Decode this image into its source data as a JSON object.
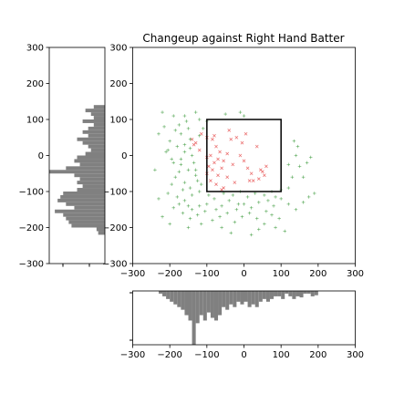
{
  "chart_data": [
    {
      "type": "scatter",
      "role": "main",
      "title": "Changeup against Right Hand Batter",
      "xlim": [
        -300,
        300
      ],
      "ylim": [
        -300,
        300
      ],
      "xticks": [
        "−300",
        "−200",
        "−100",
        "0",
        "100",
        "200",
        "300"
      ],
      "yticks": [
        "300",
        "200",
        "100",
        "0",
        "−100",
        "−200",
        "−300"
      ],
      "strike_zone": {
        "x": [
          -100,
          100
        ],
        "y": [
          -100,
          100
        ]
      },
      "series": [
        {
          "marker": "x",
          "color": "#e33b3b",
          "points": [
            [
              -80,
              55
            ],
            [
              -100,
              50
            ],
            [
              -85,
              45
            ],
            [
              -130,
              35
            ],
            [
              -135,
              30
            ],
            [
              -75,
              25
            ],
            [
              -120,
              15
            ],
            [
              -65,
              10
            ],
            [
              -45,
              5
            ],
            [
              -90,
              0
            ],
            [
              -100,
              -5
            ],
            [
              -70,
              -10
            ],
            [
              -55,
              -15
            ],
            [
              -80,
              -20
            ],
            [
              -95,
              -30
            ],
            [
              -60,
              -35
            ],
            [
              -85,
              -40
            ],
            [
              -100,
              -50
            ],
            [
              -70,
              -55
            ],
            [
              -45,
              -60
            ],
            [
              -90,
              -70
            ],
            [
              -75,
              -80
            ],
            [
              -55,
              -90
            ],
            [
              -30,
              -25
            ],
            [
              -20,
              50
            ],
            [
              -10,
              0
            ],
            [
              0,
              -15
            ],
            [
              10,
              -35
            ],
            [
              20,
              -50
            ],
            [
              25,
              -70
            ],
            [
              35,
              25
            ],
            [
              45,
              -40
            ],
            [
              50,
              -45
            ],
            [
              55,
              -55
            ],
            [
              60,
              -30
            ],
            [
              -5,
              35
            ],
            [
              -40,
              70
            ],
            [
              -25,
              -75
            ],
            [
              15,
              -70
            ],
            [
              -115,
              60
            ],
            [
              -140,
              45
            ],
            [
              -60,
              -95
            ],
            [
              40,
              -65
            ],
            [
              -35,
              45
            ],
            [
              5,
              60
            ]
          ]
        },
        {
          "marker": "+",
          "color": "#3c9a3c",
          "points": [
            [
              -220,
              120
            ],
            [
              -190,
              110
            ],
            [
              -175,
              85
            ],
            [
              -155,
              95
            ],
            [
              -120,
              100
            ],
            [
              -150,
              75
            ],
            [
              -170,
              60
            ],
            [
              -145,
              45
            ],
            [
              -200,
              40
            ],
            [
              -180,
              25
            ],
            [
              -160,
              10
            ],
            [
              -140,
              0
            ],
            [
              -195,
              -10
            ],
            [
              -170,
              -25
            ],
            [
              -150,
              -40
            ],
            [
              -130,
              -55
            ],
            [
              -185,
              -60
            ],
            [
              -160,
              -75
            ],
            [
              -145,
              -90
            ],
            [
              -120,
              -100
            ],
            [
              -205,
              -105
            ],
            [
              -180,
              -115
            ],
            [
              -160,
              -125
            ],
            [
              -140,
              -110
            ],
            [
              -120,
              -140
            ],
            [
              -100,
              -135
            ],
            [
              -80,
              -120
            ],
            [
              -60,
              -140
            ],
            [
              -40,
              -125
            ],
            [
              -20,
              -150
            ],
            [
              0,
              -135
            ],
            [
              20,
              -145
            ],
            [
              40,
              -130
            ],
            [
              60,
              -155
            ],
            [
              80,
              -140
            ],
            [
              100,
              -120
            ],
            [
              120,
              -135
            ],
            [
              140,
              -150
            ],
            [
              160,
              -130
            ],
            [
              175,
              -115
            ],
            [
              -190,
              -145
            ],
            [
              -165,
              -160
            ],
            [
              -145,
              -175
            ],
            [
              -125,
              -165
            ],
            [
              -105,
              -155
            ],
            [
              -85,
              -180
            ],
            [
              -65,
              -170
            ],
            [
              -45,
              -160
            ],
            [
              -25,
              -185
            ],
            [
              -5,
              -170
            ],
            [
              15,
              -160
            ],
            [
              35,
              -175
            ],
            [
              55,
              -190
            ],
            [
              75,
              -165
            ],
            [
              95,
              -175
            ],
            [
              110,
              -210
            ],
            [
              -150,
              -200
            ],
            [
              -200,
              -190
            ],
            [
              -230,
              -120
            ],
            [
              -240,
              -40
            ],
            [
              -210,
              10
            ],
            [
              -230,
              60
            ],
            [
              -160,
              110
            ],
            [
              -130,
              120
            ],
            [
              -100,
              95
            ],
            [
              -110,
              75
            ],
            [
              -120,
              55
            ],
            [
              -170,
              -10
            ],
            [
              -175,
              -45
            ],
            [
              -195,
              -80
            ],
            [
              -135,
              -20
            ],
            [
              -125,
              -70
            ],
            [
              -115,
              -80
            ],
            [
              -160,
              30
            ],
            [
              -185,
              70
            ],
            [
              -145,
              20
            ],
            [
              -130,
              -40
            ],
            [
              -150,
              -140
            ],
            [
              -95,
              -110
            ],
            [
              -55,
              -105
            ],
            [
              -30,
              -110
            ],
            [
              -10,
              -100
            ],
            [
              10,
              -115
            ],
            [
              30,
              -105
            ],
            [
              55,
              -110
            ],
            [
              75,
              -100
            ],
            [
              100,
              -95
            ],
            [
              120,
              -90
            ],
            [
              130,
              -60
            ],
            [
              150,
              -30
            ],
            [
              170,
              -20
            ],
            [
              180,
              -5
            ],
            [
              140,
              0
            ],
            [
              160,
              -60
            ],
            [
              120,
              -25
            ],
            [
              135,
              40
            ],
            [
              145,
              25
            ],
            [
              -10,
              120
            ],
            [
              0,
              110
            ],
            [
              -50,
              115
            ],
            [
              -165,
              -95
            ],
            [
              -175,
              -135
            ],
            [
              -115,
              -190
            ],
            [
              -60,
              -200
            ],
            [
              40,
              -205
            ],
            [
              85,
              -200
            ],
            [
              -35,
              -215
            ],
            [
              20,
              -220
            ],
            [
              -220,
              -170
            ],
            [
              -190,
              -20
            ],
            [
              -205,
              15
            ],
            [
              -140,
              -150
            ],
            [
              -75,
              -150
            ],
            [
              -15,
              -135
            ],
            [
              65,
              -125
            ],
            [
              85,
              -115
            ],
            [
              190,
              -105
            ],
            [
              -215,
              80
            ]
          ]
        }
      ]
    },
    {
      "type": "histogram",
      "role": "y-marginal",
      "orientation": "horizontal",
      "color": "#808080",
      "ylim": [
        -300,
        300
      ],
      "yticks": [
        "300",
        "200",
        "100",
        "0",
        "−100",
        "−200",
        "−300"
      ],
      "bin_width": 10,
      "bins": [
        {
          "y": 130,
          "count": 0.2
        },
        {
          "y": 120,
          "count": 0.35
        },
        {
          "y": 110,
          "count": 0.25
        },
        {
          "y": 100,
          "count": 0.2
        },
        {
          "y": 90,
          "count": 0.4
        },
        {
          "y": 80,
          "count": 0.2
        },
        {
          "y": 70,
          "count": 0.3
        },
        {
          "y": 60,
          "count": 0.4
        },
        {
          "y": 50,
          "count": 0.3
        },
        {
          "y": 40,
          "count": 0.5
        },
        {
          "y": 30,
          "count": 0.4
        },
        {
          "y": 20,
          "count": 0.3
        },
        {
          "y": 10,
          "count": 0.25
        },
        {
          "y": 0,
          "count": 0.35
        },
        {
          "y": -10,
          "count": 0.5
        },
        {
          "y": -20,
          "count": 0.55
        },
        {
          "y": -30,
          "count": 0.45
        },
        {
          "y": -40,
          "count": 0.7
        },
        {
          "y": -50,
          "count": 1.0
        },
        {
          "y": -60,
          "count": 0.55
        },
        {
          "y": -70,
          "count": 0.45
        },
        {
          "y": -80,
          "count": 0.5
        },
        {
          "y": -90,
          "count": 0.4
        },
        {
          "y": -100,
          "count": 0.5
        },
        {
          "y": -110,
          "count": 0.75
        },
        {
          "y": -120,
          "count": 0.8
        },
        {
          "y": -130,
          "count": 0.85
        },
        {
          "y": -140,
          "count": 0.7
        },
        {
          "y": -150,
          "count": 0.55
        },
        {
          "y": -160,
          "count": 0.9
        },
        {
          "y": -170,
          "count": 0.75
        },
        {
          "y": -180,
          "count": 0.7
        },
        {
          "y": -190,
          "count": 0.65
        },
        {
          "y": -200,
          "count": 0.6
        },
        {
          "y": -210,
          "count": 0.15
        },
        {
          "y": -220,
          "count": 0.12
        }
      ]
    },
    {
      "type": "histogram",
      "role": "x-marginal",
      "orientation": "vertical-inverted",
      "color": "#808080",
      "xlim": [
        -300,
        300
      ],
      "xticks": [
        "−300",
        "−200",
        "−100",
        "0",
        "100",
        "200",
        "300"
      ],
      "bin_width": 10,
      "bins": [
        {
          "x": -230,
          "count": 0.05
        },
        {
          "x": -220,
          "count": 0.1
        },
        {
          "x": -210,
          "count": 0.15
        },
        {
          "x": -200,
          "count": 0.2
        },
        {
          "x": -190,
          "count": 0.25
        },
        {
          "x": -180,
          "count": 0.3
        },
        {
          "x": -170,
          "count": 0.35
        },
        {
          "x": -160,
          "count": 0.45
        },
        {
          "x": -150,
          "count": 0.55
        },
        {
          "x": -140,
          "count": 1.0
        },
        {
          "x": -130,
          "count": 0.6
        },
        {
          "x": -120,
          "count": 0.45
        },
        {
          "x": -110,
          "count": 0.55
        },
        {
          "x": -100,
          "count": 0.4
        },
        {
          "x": -90,
          "count": 0.5
        },
        {
          "x": -80,
          "count": 0.55
        },
        {
          "x": -70,
          "count": 0.45
        },
        {
          "x": -60,
          "count": 0.3
        },
        {
          "x": -50,
          "count": 0.35
        },
        {
          "x": -40,
          "count": 0.25
        },
        {
          "x": -30,
          "count": 0.3
        },
        {
          "x": -20,
          "count": 0.2
        },
        {
          "x": -10,
          "count": 0.25
        },
        {
          "x": 0,
          "count": 0.2
        },
        {
          "x": 10,
          "count": 0.3
        },
        {
          "x": 20,
          "count": 0.25
        },
        {
          "x": 30,
          "count": 0.3
        },
        {
          "x": 40,
          "count": 0.2
        },
        {
          "x": 50,
          "count": 0.15
        },
        {
          "x": 60,
          "count": 0.2
        },
        {
          "x": 70,
          "count": 0.15
        },
        {
          "x": 80,
          "count": 0.1
        },
        {
          "x": 90,
          "count": 0.1
        },
        {
          "x": 100,
          "count": 0.15
        },
        {
          "x": 110,
          "count": 0.05
        },
        {
          "x": 120,
          "count": 0.1
        },
        {
          "x": 130,
          "count": 0.15
        },
        {
          "x": 140,
          "count": 0.1
        },
        {
          "x": 150,
          "count": 0.12
        },
        {
          "x": 160,
          "count": 0.05
        },
        {
          "x": 170,
          "count": 0.05
        },
        {
          "x": 180,
          "count": 0.1
        },
        {
          "x": 190,
          "count": 0.08
        }
      ]
    }
  ]
}
